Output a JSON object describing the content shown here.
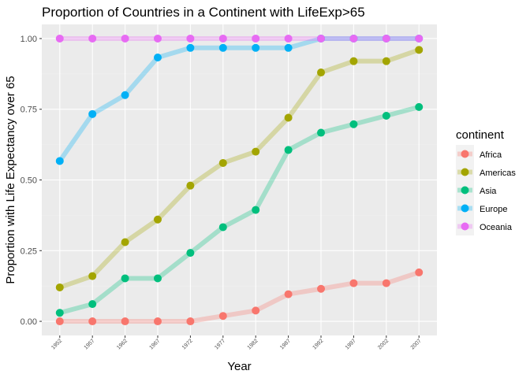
{
  "chart_data": {
    "type": "line",
    "title": "Proportion of Countries in a Continent with LifeExp>65",
    "xlabel": "Year",
    "ylabel": "Proportion with Life Expectancy over 65",
    "x": [
      1952,
      1957,
      1962,
      1967,
      1972,
      1977,
      1982,
      1987,
      1992,
      1997,
      2002,
      2007
    ],
    "x_tick_labels": [
      "1952",
      "1957",
      "1962",
      "1967",
      "1972",
      "1977",
      "1982",
      "1987",
      "1992",
      "1997",
      "2002",
      "2007"
    ],
    "y_ticks": [
      0.0,
      0.25,
      0.5,
      0.75,
      1.0
    ],
    "y_tick_labels": [
      "0.00",
      "0.25",
      "0.50",
      "0.75",
      "1.00"
    ],
    "ylim": [
      -0.05,
      1.05
    ],
    "grid": true,
    "legend": {
      "title": "continent",
      "position": "right"
    },
    "series": [
      {
        "name": "Africa",
        "color": "#F8766D",
        "values": [
          0.0,
          0.0,
          0.0,
          0.0,
          0.0,
          0.019,
          0.038,
          0.096,
          0.115,
          0.135,
          0.135,
          0.173
        ]
      },
      {
        "name": "Americas",
        "color": "#A3A500",
        "values": [
          0.12,
          0.16,
          0.28,
          0.36,
          0.48,
          0.56,
          0.6,
          0.72,
          0.88,
          0.92,
          0.92,
          0.96
        ]
      },
      {
        "name": "Asia",
        "color": "#00BF7D",
        "values": [
          0.03,
          0.061,
          0.152,
          0.152,
          0.242,
          0.333,
          0.394,
          0.606,
          0.667,
          0.697,
          0.727,
          0.758
        ]
      },
      {
        "name": "Europe",
        "color": "#00B0F6",
        "values": [
          0.567,
          0.733,
          0.8,
          0.933,
          0.967,
          0.967,
          0.967,
          0.967,
          1.0,
          1.0,
          1.0,
          1.0
        ]
      },
      {
        "name": "Oceania",
        "color": "#E76BF3",
        "values": [
          1.0,
          1.0,
          1.0,
          1.0,
          1.0,
          1.0,
          1.0,
          1.0,
          1.0,
          1.0,
          1.0,
          1.0
        ]
      }
    ]
  }
}
